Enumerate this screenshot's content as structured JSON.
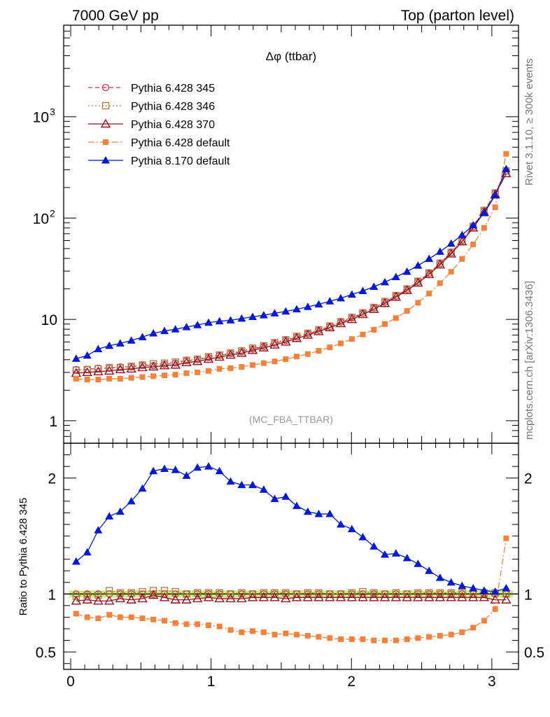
{
  "header": {
    "left": "7000 GeV pp",
    "right": "Top (parton level)"
  },
  "side_labels": {
    "rivet": "Rivet 3.1.10, ≥ 300k events",
    "mcplots": "mcplots.cern.ch [arXiv:1306.3436]"
  },
  "plot_title": "Δφ (ttbar)",
  "watermark": "(MC_FBA_TTBAR)",
  "ratio_ylabel": "Ratio to Pythia 6.428 345",
  "colors": {
    "p345": "#cc3355",
    "p346": "#b07a3a",
    "p370": "#990e1e",
    "p6def": "#f5823b",
    "p8def": "#0018d8",
    "band": "#c6f07a"
  },
  "chart_data": [
    {
      "type": "line",
      "yscale": "log",
      "ylim": [
        0.6,
        8000
      ],
      "xlim": [
        -0.05,
        3.19
      ],
      "yticks": [
        {
          "v": 1,
          "label": "1"
        },
        {
          "v": 10,
          "label": "10"
        },
        {
          "v": 100,
          "label": "10",
          "sup": "2"
        },
        {
          "v": 1000,
          "label": "10",
          "sup": "3"
        }
      ],
      "legend": "top-left",
      "x": [
        0.039,
        0.118,
        0.196,
        0.275,
        0.353,
        0.432,
        0.511,
        0.589,
        0.668,
        0.746,
        0.825,
        0.903,
        0.982,
        1.06,
        1.139,
        1.218,
        1.296,
        1.375,
        1.453,
        1.532,
        1.61,
        1.689,
        1.767,
        1.846,
        1.924,
        2.003,
        2.081,
        2.16,
        2.238,
        2.317,
        2.396,
        2.474,
        2.553,
        2.631,
        2.71,
        2.788,
        2.867,
        2.945,
        3.024,
        3.102
      ],
      "series": [
        {
          "name": "Pythia 6.428 345",
          "key": "p345",
          "marker": "circle",
          "dash": "6,4",
          "values": [
            3.2,
            3.2,
            3.3,
            3.3,
            3.4,
            3.4,
            3.5,
            3.5,
            3.6,
            3.7,
            3.9,
            4.0,
            4.2,
            4.4,
            4.6,
            4.8,
            5.1,
            5.4,
            5.8,
            6.2,
            6.7,
            7.2,
            7.8,
            8.5,
            9.4,
            10.3,
            11.5,
            13.0,
            14.8,
            17.0,
            19.8,
            23.5,
            28.5,
            35.5,
            45.5,
            60,
            82,
            117,
            175,
            290
          ]
        },
        {
          "name": "Pythia 6.428 346",
          "key": "p346",
          "marker": "square-open",
          "dash": "2,3",
          "values": [
            3.15,
            3.2,
            3.25,
            3.35,
            3.35,
            3.45,
            3.55,
            3.65,
            3.7,
            3.8,
            3.95,
            4.05,
            4.3,
            4.45,
            4.65,
            4.9,
            5.2,
            5.5,
            5.9,
            6.3,
            6.8,
            7.3,
            7.9,
            8.6,
            9.5,
            10.5,
            11.6,
            13.1,
            15.0,
            17.2,
            20.0,
            23.8,
            28.8,
            36.0,
            46,
            61,
            83,
            119,
            177,
            292
          ]
        },
        {
          "name": "Pythia 6.428 370",
          "key": "p370",
          "marker": "triangle-open",
          "dash": "",
          "values": [
            2.95,
            3.0,
            3.05,
            3.1,
            3.2,
            3.25,
            3.35,
            3.4,
            3.5,
            3.55,
            3.75,
            3.85,
            4.05,
            4.25,
            4.45,
            4.65,
            4.95,
            5.25,
            5.6,
            6.0,
            6.5,
            7.0,
            7.6,
            8.3,
            9.1,
            10.0,
            11.2,
            12.6,
            14.4,
            16.6,
            19.3,
            22.9,
            27.8,
            34.6,
            44.3,
            58.5,
            80,
            114,
            170,
            275
          ]
        },
        {
          "name": "Pythia 6.428 default",
          "key": "p6def",
          "marker": "square",
          "dash": "9,3,2,3",
          "values": [
            2.6,
            2.55,
            2.55,
            2.6,
            2.6,
            2.65,
            2.7,
            2.75,
            2.8,
            2.85,
            2.95,
            3.0,
            3.1,
            3.25,
            3.3,
            3.4,
            3.55,
            3.7,
            3.85,
            4.05,
            4.3,
            4.55,
            4.9,
            5.3,
            5.8,
            6.4,
            7.1,
            7.9,
            9.0,
            10.3,
            12.1,
            14.6,
            18.0,
            22.8,
            29.5,
            39.5,
            55,
            80,
            128,
            430
          ]
        },
        {
          "name": "Pythia 8.170 default",
          "key": "p8def",
          "marker": "triangle",
          "dash": "",
          "values": [
            4.1,
            4.4,
            5.1,
            5.5,
            5.8,
            6.2,
            6.7,
            7.3,
            7.7,
            8.0,
            8.4,
            8.8,
            9.3,
            9.6,
            9.8,
            10.2,
            10.6,
            11.0,
            11.5,
            12.0,
            12.6,
            13.3,
            14.1,
            15.1,
            16.2,
            17.6,
            19.1,
            21.0,
            23.3,
            26.2,
            29.6,
            34.0,
            39.6,
            46.6,
            56.0,
            68.0,
            85.0,
            112,
            168,
            305
          ]
        }
      ]
    },
    {
      "type": "line",
      "ylim": [
        0.35,
        2.3
      ],
      "xlim": [
        -0.05,
        3.19
      ],
      "xticks": [
        0,
        1,
        2,
        3
      ],
      "yticks": [
        {
          "v": 0.5,
          "label": "0.5"
        },
        {
          "v": 1,
          "label": "1"
        },
        {
          "v": 2,
          "label": "2"
        }
      ],
      "reference_band": [
        0.97,
        1.03
      ],
      "x": [
        0.039,
        0.118,
        0.196,
        0.275,
        0.353,
        0.432,
        0.511,
        0.589,
        0.668,
        0.746,
        0.825,
        0.903,
        0.982,
        1.06,
        1.139,
        1.218,
        1.296,
        1.375,
        1.453,
        1.532,
        1.61,
        1.689,
        1.767,
        1.846,
        1.924,
        2.003,
        2.081,
        2.16,
        2.238,
        2.317,
        2.396,
        2.474,
        2.553,
        2.631,
        2.71,
        2.788,
        2.867,
        2.945,
        3.024,
        3.102
      ],
      "series": [
        {
          "name": "Pythia 6.428 346",
          "key": "p346",
          "marker": "square-open",
          "dash": "2,3",
          "values": [
            0.98,
            0.99,
            0.99,
            1.03,
            1.01,
            1.01,
            1.02,
            1.03,
            1.03,
            1.02,
            1.0,
            1.01,
            1.01,
            1.01,
            1.0,
            1.01,
            1.0,
            1.01,
            1.01,
            1.01,
            1.0,
            1.01,
            1.01,
            1.0,
            1.0,
            1.01,
            1.02,
            1.01,
            1.0,
            1.01,
            1.0,
            1.01,
            1.01,
            1.01,
            1.01,
            1.01,
            1.0,
            1.01,
            1.01,
            1.0
          ]
        },
        {
          "name": "Pythia 6.428 370",
          "key": "p370",
          "marker": "triangle-open",
          "dash": "",
          "values": [
            0.94,
            0.95,
            0.94,
            0.94,
            0.96,
            0.95,
            0.96,
            0.99,
            0.97,
            0.95,
            0.95,
            0.96,
            0.97,
            0.96,
            0.96,
            0.96,
            0.97,
            0.97,
            0.97,
            0.96,
            0.97,
            0.97,
            0.97,
            0.97,
            0.97,
            0.97,
            0.97,
            0.97,
            0.97,
            0.97,
            0.97,
            0.97,
            0.97,
            0.97,
            0.97,
            0.97,
            0.97,
            0.97,
            0.95,
            0.95
          ]
        },
        {
          "name": "Pythia 6.428 default",
          "key": "p6def",
          "marker": "square",
          "dash": "9,3,2,3",
          "values": [
            0.83,
            0.8,
            0.79,
            0.82,
            0.8,
            0.8,
            0.79,
            0.78,
            0.77,
            0.75,
            0.74,
            0.74,
            0.73,
            0.72,
            0.69,
            0.67,
            0.68,
            0.67,
            0.65,
            0.66,
            0.65,
            0.64,
            0.63,
            0.62,
            0.61,
            0.61,
            0.61,
            0.6,
            0.6,
            0.6,
            0.61,
            0.62,
            0.63,
            0.64,
            0.65,
            0.67,
            0.71,
            0.77,
            0.87,
            1.48
          ]
        },
        {
          "name": "Pythia 8.170 default",
          "key": "p8def",
          "marker": "triangle",
          "dash": "",
          "values": [
            1.28,
            1.36,
            1.55,
            1.67,
            1.71,
            1.8,
            1.91,
            2.06,
            2.08,
            2.07,
            2.02,
            2.09,
            2.1,
            2.06,
            1.97,
            1.94,
            1.94,
            1.9,
            1.82,
            1.84,
            1.76,
            1.71,
            1.69,
            1.69,
            1.6,
            1.56,
            1.49,
            1.41,
            1.34,
            1.35,
            1.31,
            1.26,
            1.2,
            1.14,
            1.1,
            1.07,
            1.05,
            1.03,
            1.02,
            1.05
          ]
        }
      ]
    }
  ]
}
